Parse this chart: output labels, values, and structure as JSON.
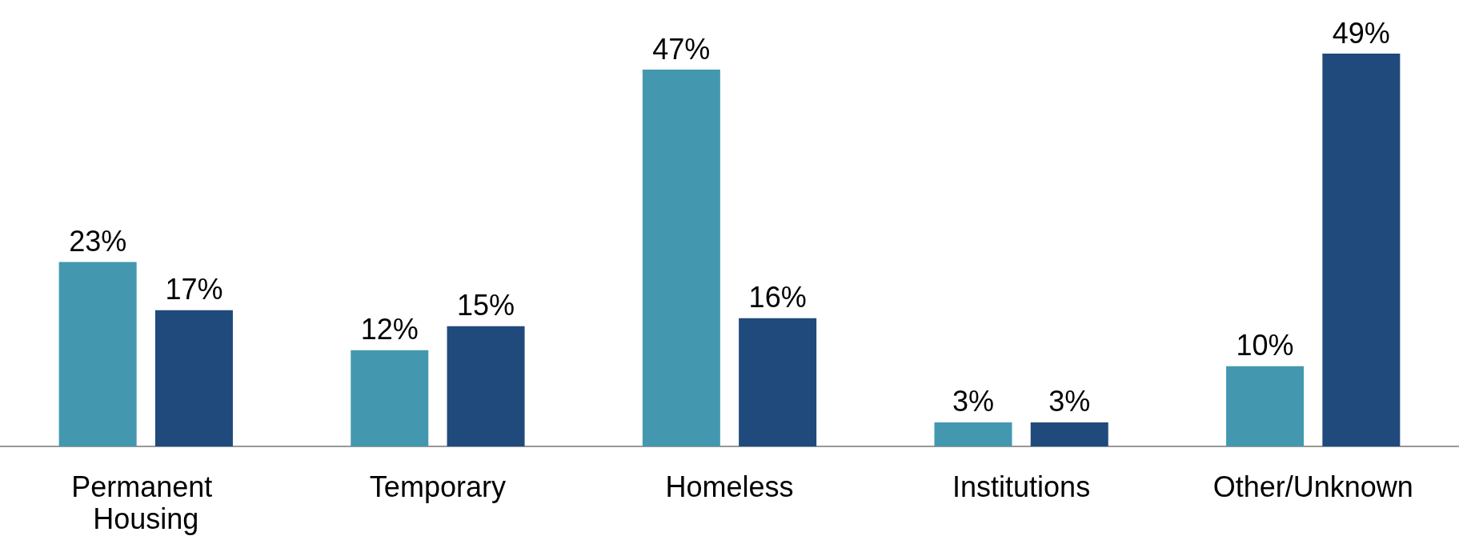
{
  "chart_data": {
    "type": "bar",
    "categories": [
      "Permanent Housing",
      "Temporary",
      "Homeless",
      "Institutions",
      "Other/Unknown"
    ],
    "series": [
      {
        "color": "#4398b0",
        "values": [
          23,
          12,
          47,
          3,
          10
        ],
        "value_labels": [
          "23%",
          "12%",
          "47%",
          "3%",
          "10%"
        ]
      },
      {
        "color": "#204a7c",
        "values": [
          17,
          15,
          16,
          3,
          49
        ],
        "value_labels": [
          "17%",
          "15%",
          "16%",
          "3%",
          "49%"
        ]
      }
    ]
  }
}
